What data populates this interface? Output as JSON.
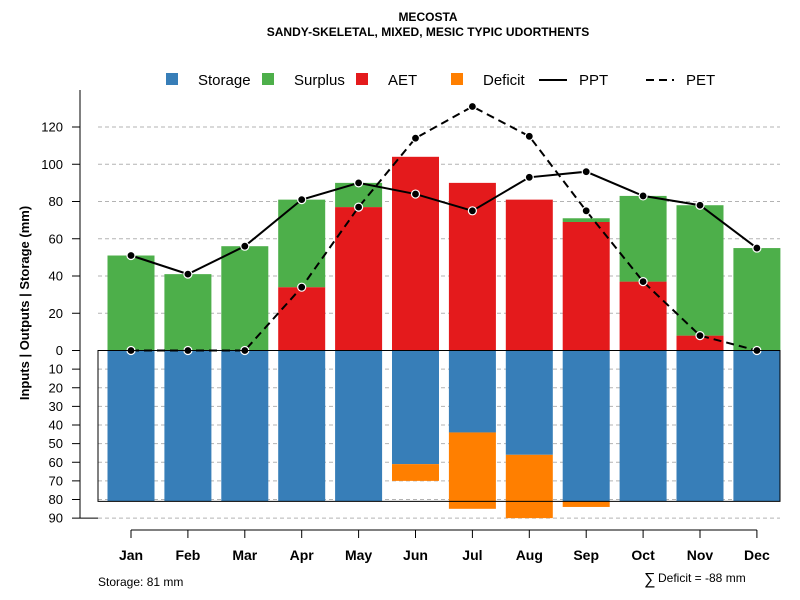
{
  "chart_data": {
    "type": "bar",
    "title": "MECOSTA",
    "subtitle": "SANDY-SKELETAL, MIXED, MESIC TYPIC UDORTHENTS",
    "ylabel": "Inputs | Outputs | Storage    (mm)",
    "categories": [
      "Jan",
      "Feb",
      "Mar",
      "Apr",
      "May",
      "Jun",
      "Jul",
      "Aug",
      "Sep",
      "Oct",
      "Nov",
      "Dec"
    ],
    "ylim": [
      -90,
      135
    ],
    "y_ticks_positive": [
      0,
      20,
      40,
      60,
      80,
      100,
      120
    ],
    "y_ticks_negative": [
      10,
      20,
      30,
      40,
      50,
      60,
      70,
      80,
      90
    ],
    "grid": true,
    "legend": {
      "placement": "top",
      "entries": [
        {
          "name": "Storage",
          "kind": "square",
          "color": "#377eb8"
        },
        {
          "name": "Surplus",
          "kind": "square",
          "color": "#4daf4a"
        },
        {
          "name": "AET",
          "kind": "square",
          "color": "#e41a1c"
        },
        {
          "name": "Deficit",
          "kind": "square",
          "color": "#ff7f00"
        },
        {
          "name": "PPT",
          "kind": "line",
          "color": "#000000"
        },
        {
          "name": "PET",
          "kind": "dashed",
          "color": "#000000"
        }
      ]
    },
    "colors": {
      "storage": "#377eb8",
      "surplus": "#4daf4a",
      "aet": "#e41a1c",
      "deficit": "#ff7f00"
    },
    "storage_capacity": 81,
    "series": [
      {
        "name": "Storage",
        "values": [
          81,
          81,
          81,
          81,
          81,
          61,
          44,
          56,
          81,
          81,
          81,
          81
        ]
      },
      {
        "name": "Deficit",
        "values": [
          0,
          0,
          0,
          0,
          0,
          9,
          41,
          34,
          3,
          0,
          0,
          0
        ]
      },
      {
        "name": "AET",
        "values": [
          0,
          0,
          0,
          34,
          77,
          104,
          90,
          81,
          69,
          37,
          8,
          0
        ]
      },
      {
        "name": "Surplus",
        "values": [
          51,
          41,
          56,
          47,
          13,
          0,
          0,
          0,
          2,
          46,
          70,
          55
        ]
      },
      {
        "name": "PPT",
        "values": [
          51,
          41,
          56,
          81,
          90,
          84,
          75,
          93,
          96,
          83,
          78,
          55
        ]
      },
      {
        "name": "PET",
        "values": [
          0,
          0,
          0,
          34,
          77,
          114,
          131,
          115,
          75,
          37,
          8,
          0
        ]
      }
    ]
  },
  "footer": {
    "storage_text": "Storage: 81 mm",
    "deficit_symbol": "∑",
    "deficit_text": "Deficit = -88 mm"
  }
}
